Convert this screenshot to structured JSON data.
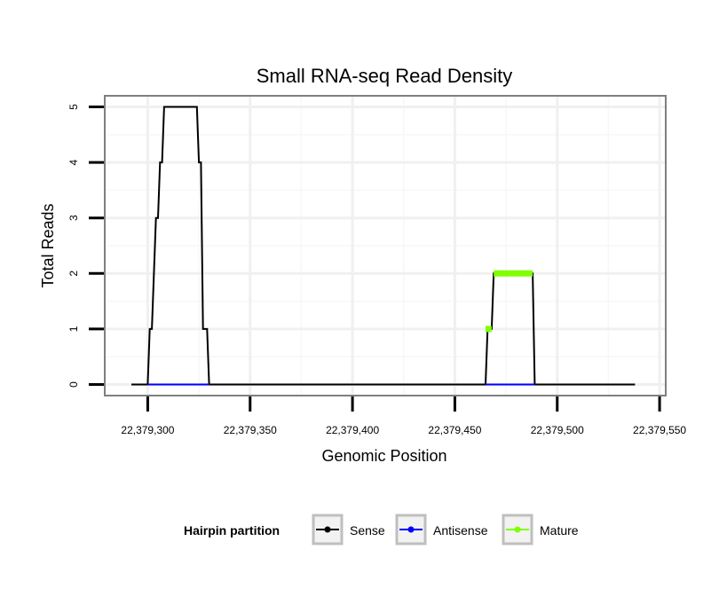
{
  "chart_data": {
    "type": "line",
    "title": "Small RNA-seq Read Density",
    "xlabel": "Genomic Position",
    "ylabel": "Total Reads",
    "xlim": [
      22379279,
      22379553
    ],
    "ylim": [
      -0.2,
      5.2
    ],
    "x_ticks": [
      22379300,
      22379350,
      22379400,
      22379450,
      22379500,
      22379550
    ],
    "x_tick_labels": [
      "22,379,300",
      "22,379,350",
      "22,379,400",
      "22,379,450",
      "22,379,500",
      "22,379,550"
    ],
    "y_ticks": [
      0,
      1,
      2,
      3,
      4,
      5
    ],
    "y_tick_labels": [
      "0",
      "1",
      "2",
      "3",
      "4",
      "5"
    ],
    "grid": true,
    "legend": {
      "title": "Hairpin partition",
      "position": "bottom",
      "entries": [
        "Sense",
        "Antisense",
        "Mature"
      ]
    },
    "series": [
      {
        "name": "Sense",
        "color": "#000000",
        "points": [
          [
            22379292,
            0
          ],
          [
            22379300,
            0
          ],
          [
            22379301,
            1
          ],
          [
            22379302,
            1
          ],
          [
            22379304,
            3
          ],
          [
            22379305,
            3
          ],
          [
            22379306,
            4
          ],
          [
            22379307,
            4
          ],
          [
            22379308,
            5
          ],
          [
            22379324,
            5
          ],
          [
            22379325,
            4
          ],
          [
            22379326,
            4
          ],
          [
            22379327,
            1
          ],
          [
            22379329,
            1
          ],
          [
            22379330,
            0
          ],
          [
            22379465,
            0
          ],
          [
            22379466,
            1
          ],
          [
            22379468,
            1
          ],
          [
            22379469,
            2
          ],
          [
            22379488,
            2
          ],
          [
            22379489,
            0
          ],
          [
            22379538,
            0
          ]
        ]
      },
      {
        "name": "Antisense",
        "color": "#0000ff",
        "segments": [
          [
            [
              22379300,
              0
            ],
            [
              22379330,
              0
            ]
          ],
          [
            [
              22379465,
              0
            ],
            [
              22379489,
              0
            ]
          ]
        ]
      },
      {
        "name": "Mature",
        "color": "#7fff00",
        "segments": [
          [
            [
              22379465,
              1
            ],
            [
              22379468,
              1
            ]
          ],
          [
            [
              22379469,
              2
            ],
            [
              22379488,
              2
            ]
          ]
        ]
      }
    ]
  }
}
